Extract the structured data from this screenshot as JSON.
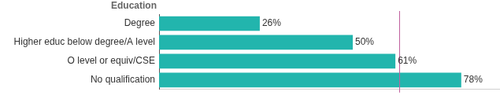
{
  "chart_data": {
    "type": "bar",
    "title": "Education",
    "orientation": "horizontal",
    "categories": [
      "Degree",
      "Higher educ below degree/A level",
      "O level or equiv/CSE",
      "No qualification"
    ],
    "values": [
      26,
      50,
      61,
      78
    ],
    "value_labels": [
      "26%",
      "50%",
      "61%",
      "78%"
    ],
    "color": "#22b5ad",
    "xlim": [
      0,
      88
    ],
    "reference_line": 62,
    "data_labels": true,
    "tick_labels": "y",
    "grid": false
  }
}
